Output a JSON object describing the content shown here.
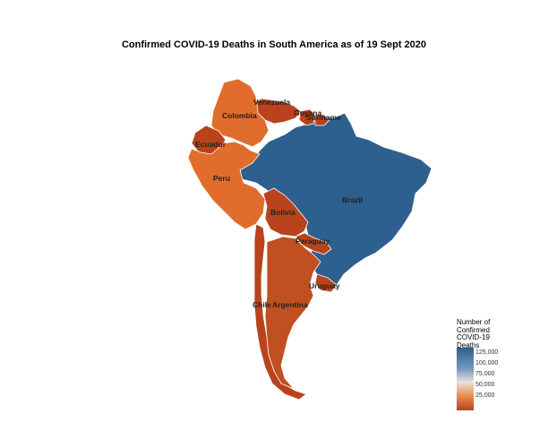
{
  "title": "Confirmed COVID-19 Deaths in South America as of 19 Sept 2020",
  "colors": {
    "low": "#b8431c",
    "mid_low": "#e06d2c",
    "mid": "#e8e3dc",
    "high": "#2d5f8f"
  },
  "countries": [
    {
      "id": "venezuela",
      "label": "Venezuela",
      "color": "#b8431c"
    },
    {
      "id": "guyana",
      "label": "Guyana",
      "color": "#b8431c"
    },
    {
      "id": "suriname",
      "label": "Suriname",
      "color": "#b8431c"
    },
    {
      "id": "colombia",
      "label": "Colombia",
      "color": "#e06d2c"
    },
    {
      "id": "ecuador",
      "label": "Ecuador",
      "color": "#b8431c"
    },
    {
      "id": "peru",
      "label": "Peru",
      "color": "#e06d2c"
    },
    {
      "id": "brazil",
      "label": "Brazil",
      "color": "#2d5f8f"
    },
    {
      "id": "bolivia",
      "label": "Bolivia",
      "color": "#b8431c"
    },
    {
      "id": "paraguay",
      "label": "Paraguay",
      "color": "#b8431c"
    },
    {
      "id": "uruguay",
      "label": "Uruguay",
      "color": "#b8431c"
    },
    {
      "id": "chile",
      "label": "Chile",
      "color": "#b8431c"
    },
    {
      "id": "argentina",
      "label": "Argentina",
      "color": "#c0501f"
    }
  ],
  "legend": {
    "title": "Number of\nConfirmed\nCOVID-19\nDeaths",
    "ticks": [
      "125,000",
      "100,000",
      "75,000",
      "50,000",
      "25,000"
    ],
    "tick_values": [
      125000,
      100000,
      75000,
      50000,
      25000
    ]
  }
}
